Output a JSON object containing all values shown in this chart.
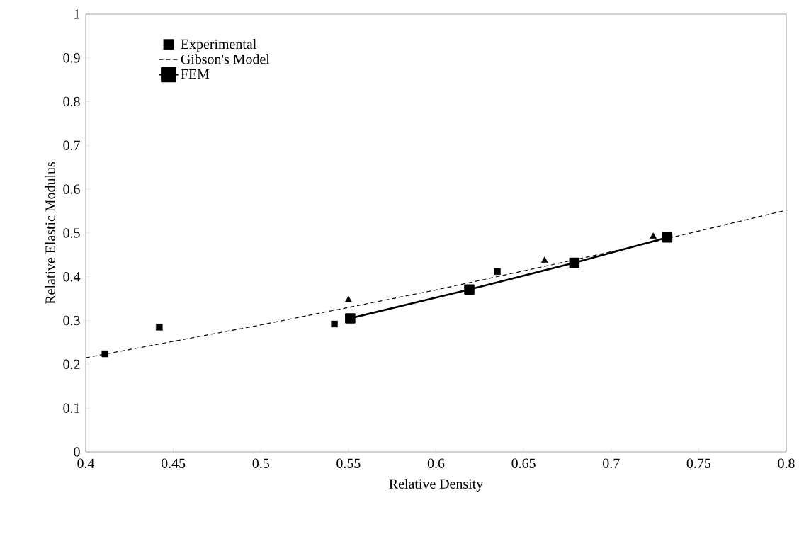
{
  "chart_data": {
    "type": "scatter",
    "xlabel": "Relative Density",
    "ylabel": "Relative Elastic Modulus",
    "series": [
      {
        "name": "Experimental",
        "color": "#000000",
        "marker": "square",
        "x": [
          0.411,
          0.442,
          0.542,
          0.635
        ],
        "values": [
          0.224,
          0.285,
          0.292,
          0.412
        ]
      },
      {
        "color": "#000000",
        "marker": "triangle",
        "x": [
          0.442,
          0.55,
          0.662,
          0.724
        ],
        "values": [
          0.283,
          0.347,
          0.437,
          0.492
        ]
      },
      {
        "name": "Gibson's Model",
        "type": "line",
        "color": "#000000",
        "marker": "none",
        "line_style": "dashed",
        "x": [
          0.4,
          0.5,
          0.6,
          0.7,
          0.8
        ],
        "values": [
          0.215,
          0.29,
          0.37,
          0.457,
          0.552
        ]
      },
      {
        "name": "FEM",
        "type": "line",
        "color": "#000000",
        "marker": "square",
        "line_style": "solid",
        "x": [
          0.551,
          0.619,
          0.679,
          0.732
        ],
        "values": [
          0.305,
          0.371,
          0.432,
          0.49
        ]
      }
    ],
    "xlim": [
      0.4,
      0.8
    ],
    "ylim": [
      0,
      1
    ],
    "xticks": [
      0.4,
      0.45,
      0.5,
      0.55,
      0.6,
      0.65,
      0.7,
      0.75,
      0.8
    ],
    "yticks": [
      0,
      0.1,
      0.2,
      0.3,
      0.4,
      0.5,
      0.6,
      0.7,
      0.8,
      0.9,
      1
    ],
    "grid": false,
    "legend": "top left"
  }
}
